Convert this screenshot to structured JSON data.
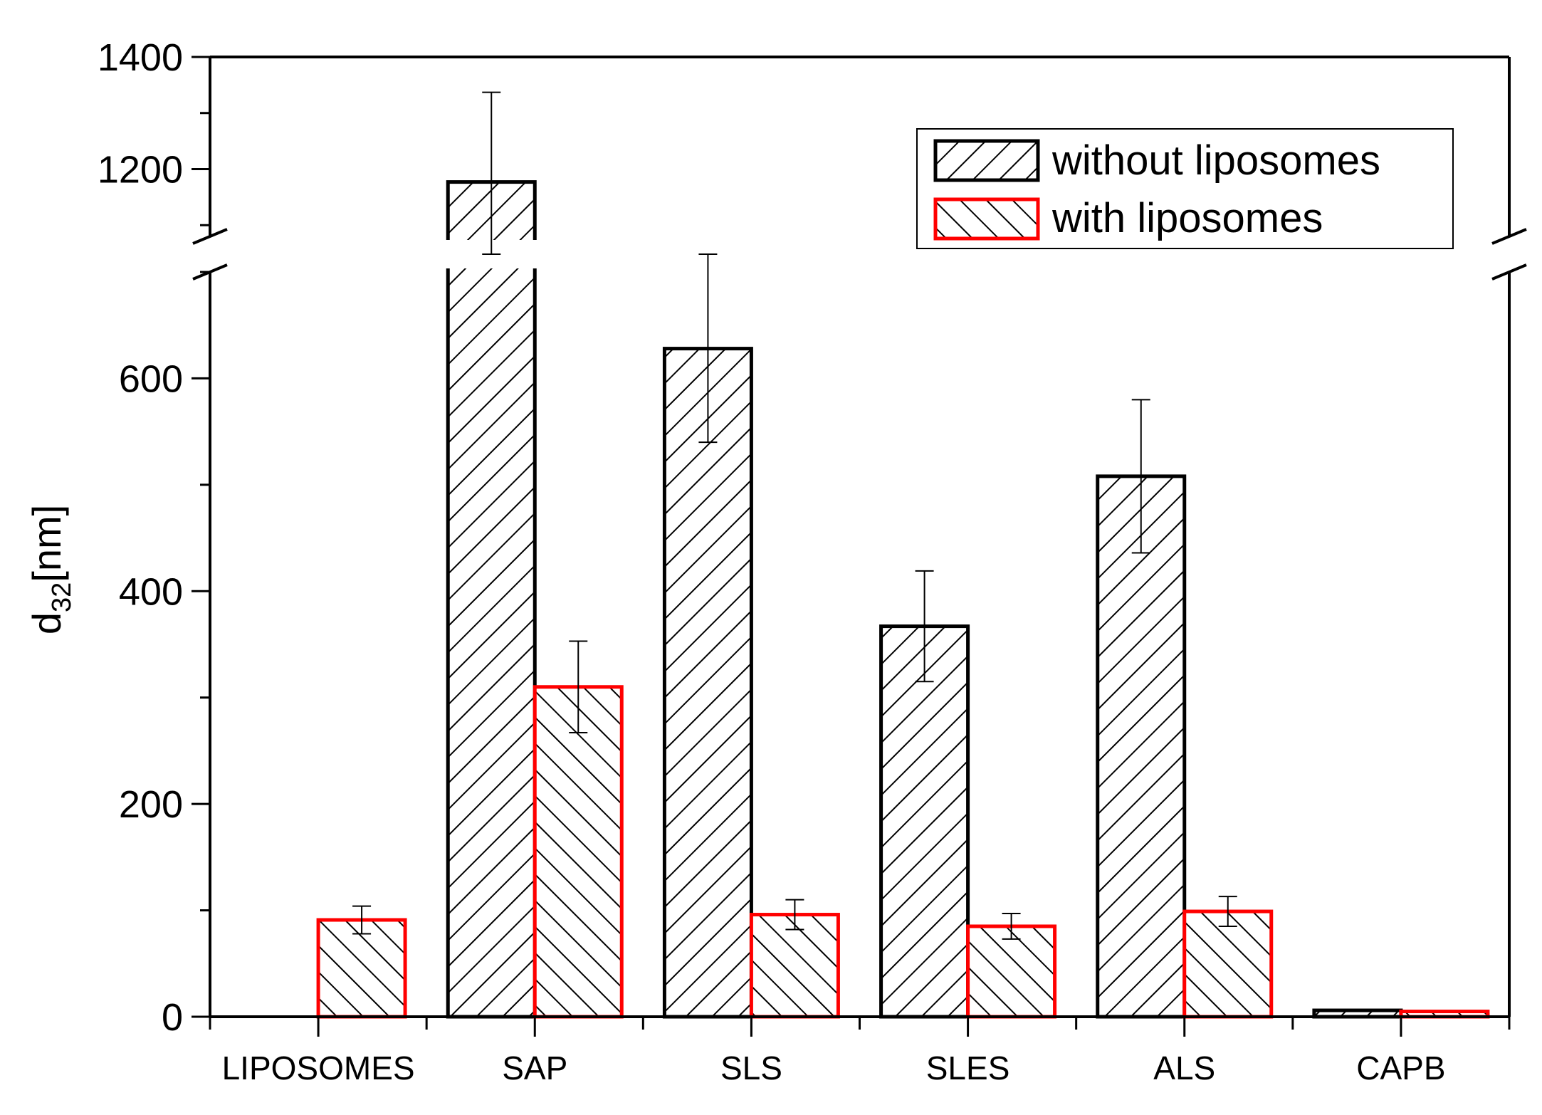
{
  "chart_data": {
    "type": "bar",
    "title": "",
    "xlabel": "",
    "ylabel": "d",
    "ylabel_subscript": "32",
    "ylabel_unit": "[nm]",
    "categories": [
      "LIPOSOMES",
      "SAP",
      "SLS",
      "SLES",
      "ALS",
      "CAPB"
    ],
    "series": [
      {
        "name": "without liposomes",
        "color": "#000000",
        "hatch": "forward",
        "values": [
          null,
          1177,
          628,
          367,
          508,
          6
        ],
        "errors": [
          null,
          160,
          88,
          52,
          72,
          null
        ]
      },
      {
        "name": "with liposomes",
        "color": "#ff0000",
        "hatch": "backward",
        "values": [
          91,
          310,
          96,
          85,
          99,
          5
        ],
        "errors": [
          13,
          43,
          14,
          12,
          14,
          null
        ]
      }
    ],
    "y_axis": {
      "lower_segment": {
        "range": [
          0,
          700
        ],
        "ticks": [
          0,
          200,
          400,
          600
        ],
        "tick_labels": [
          "0",
          "200",
          "400",
          "600"
        ]
      },
      "upper_segment": {
        "range": [
          1080,
          1400
        ],
        "ticks": [
          1200,
          1400
        ],
        "tick_labels": [
          "1200",
          "1400"
        ]
      },
      "axis_break": "between 700 and 1080"
    },
    "legend": {
      "placement": "top-right",
      "entries": [
        "without liposomes",
        "with liposomes"
      ]
    },
    "grid": false
  }
}
